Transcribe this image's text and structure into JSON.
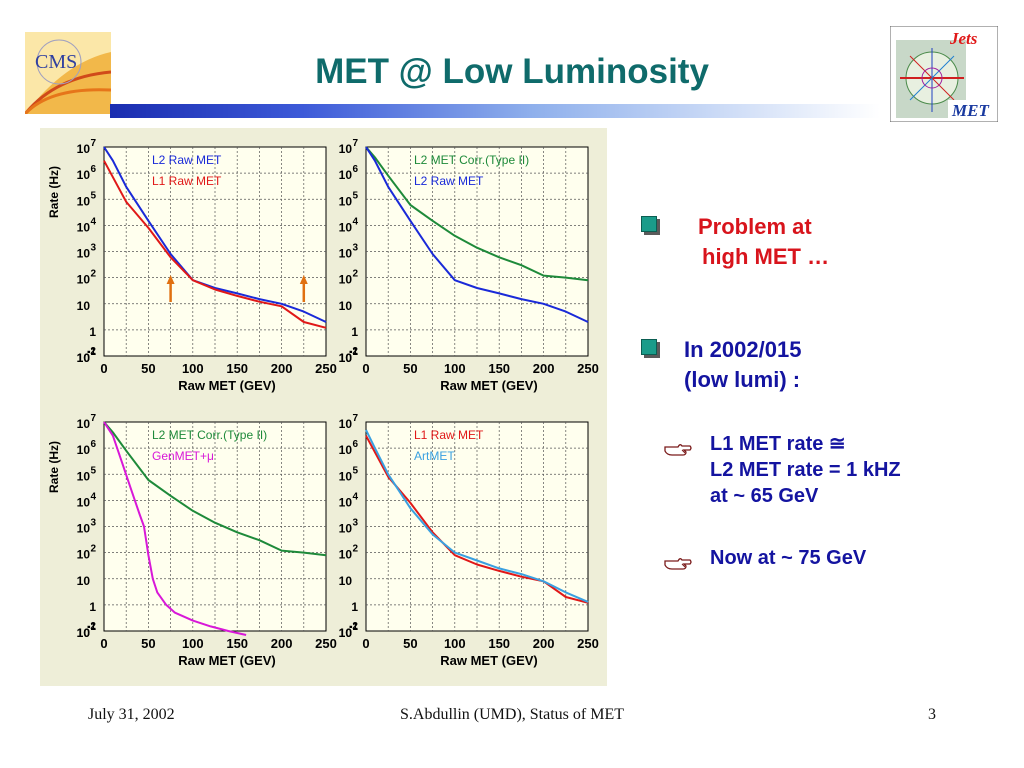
{
  "title": "MET @ Low Luminosity",
  "logos": {
    "left": "CMS",
    "right_top": "Jets",
    "right_bottom": "MET"
  },
  "bullets": [
    {
      "lines": [
        "Problem at",
        "high MET …"
      ],
      "color": "#d8141c"
    },
    {
      "lines": [
        "In 2002/015",
        "(low lumi) :"
      ],
      "color": "#1414a0"
    }
  ],
  "subbullets": [
    {
      "lines": [
        "L1 MET rate ≅",
        "L2 MET rate = 1 kHZ",
        "at ~ 65 GeV"
      ]
    },
    {
      "lines": [
        "Now  at ~ 75 GeV"
      ]
    }
  ],
  "footer": {
    "date": "July 31, 2002",
    "center": "S.Abdullin (UMD),  Status of MET",
    "page": "3"
  },
  "chart_data": [
    {
      "type": "line",
      "log_y": true,
      "grid": true,
      "xlim": [
        0,
        250
      ],
      "ylim": [
        0.1,
        10000000
      ],
      "xlabel": "Raw MET (GEV)",
      "ylabel": "Rate (Hz)",
      "series": [
        {
          "name": "L2 Raw MET",
          "color": "#1a2ad8",
          "x": [
            0,
            10,
            25,
            50,
            75,
            100,
            125,
            150,
            175,
            200,
            225,
            250
          ],
          "y": [
            10000000,
            3000000,
            300000,
            15000,
            800,
            80,
            40,
            25,
            15,
            10,
            5,
            2
          ]
        },
        {
          "name": "L1 Raw MET",
          "color": "#e01818",
          "x": [
            0,
            10,
            25,
            50,
            75,
            100,
            125,
            150,
            175,
            200,
            225,
            250
          ],
          "y": [
            3000000,
            700000,
            80000,
            8000,
            600,
            80,
            35,
            20,
            12,
            8,
            2,
            1.2
          ]
        }
      ],
      "annotations": [
        "arrow at x≈75",
        "arrow at x≈225"
      ]
    },
    {
      "type": "line",
      "log_y": true,
      "grid": true,
      "xlim": [
        0,
        250
      ],
      "ylim": [
        0.1,
        10000000
      ],
      "xlabel": "Raw MET (GEV)",
      "ylabel": "",
      "series": [
        {
          "name": "L2 MET Corr.(Type II)",
          "color": "#1e8a3a",
          "x": [
            0,
            10,
            25,
            50,
            75,
            100,
            125,
            150,
            175,
            200,
            225,
            250
          ],
          "y": [
            10000000,
            4000000,
            800000,
            60000,
            15000,
            4000,
            1400,
            600,
            300,
            120,
            100,
            80
          ]
        },
        {
          "name": "L2 Raw MET",
          "color": "#1a2ad8",
          "x": [
            0,
            10,
            25,
            50,
            75,
            100,
            125,
            150,
            175,
            200,
            225,
            250
          ],
          "y": [
            10000000,
            3000000,
            300000,
            15000,
            800,
            80,
            40,
            25,
            15,
            10,
            5,
            2
          ]
        }
      ]
    },
    {
      "type": "line",
      "log_y": true,
      "grid": true,
      "xlim": [
        0,
        250
      ],
      "ylim": [
        0.1,
        10000000
      ],
      "xlabel": "Raw MET (GEV)",
      "ylabel": "Rate (Hz)",
      "series": [
        {
          "name": "L2 MET Corr.(Type II)",
          "color": "#1e8a3a",
          "x": [
            0,
            10,
            25,
            50,
            75,
            100,
            125,
            150,
            175,
            200,
            225,
            250
          ],
          "y": [
            10000000,
            4000000,
            800000,
            60000,
            15000,
            4000,
            1400,
            600,
            300,
            120,
            100,
            80
          ]
        },
        {
          "name": "GenMET+μ",
          "color": "#d818d8",
          "x": [
            0,
            10,
            20,
            30,
            40,
            45,
            50,
            55,
            60,
            70,
            80,
            100,
            120,
            140,
            160
          ],
          "y": [
            10000000,
            3000000,
            300000,
            30000,
            3000,
            1000,
            80,
            10,
            3,
            1,
            0.5,
            0.25,
            0.15,
            0.1,
            0.07
          ]
        }
      ]
    },
    {
      "type": "line",
      "log_y": true,
      "grid": true,
      "xlim": [
        0,
        250
      ],
      "ylim": [
        0.1,
        10000000
      ],
      "xlabel": "Raw MET (GEV)",
      "ylabel": "",
      "series": [
        {
          "name": "L1 Raw MET",
          "color": "#e01818",
          "x": [
            0,
            10,
            25,
            50,
            75,
            100,
            125,
            150,
            175,
            200,
            225,
            250
          ],
          "y": [
            3000000,
            700000,
            80000,
            8000,
            600,
            80,
            35,
            20,
            12,
            8,
            2,
            1.2
          ]
        },
        {
          "name": "ArtMET",
          "color": "#3aa0e0",
          "x": [
            0,
            10,
            25,
            50,
            75,
            100,
            125,
            150,
            175,
            200,
            225,
            250
          ],
          "y": [
            5000000,
            1000000,
            100000,
            5000,
            500,
            100,
            50,
            25,
            15,
            8,
            3,
            1.3
          ]
        }
      ]
    }
  ]
}
